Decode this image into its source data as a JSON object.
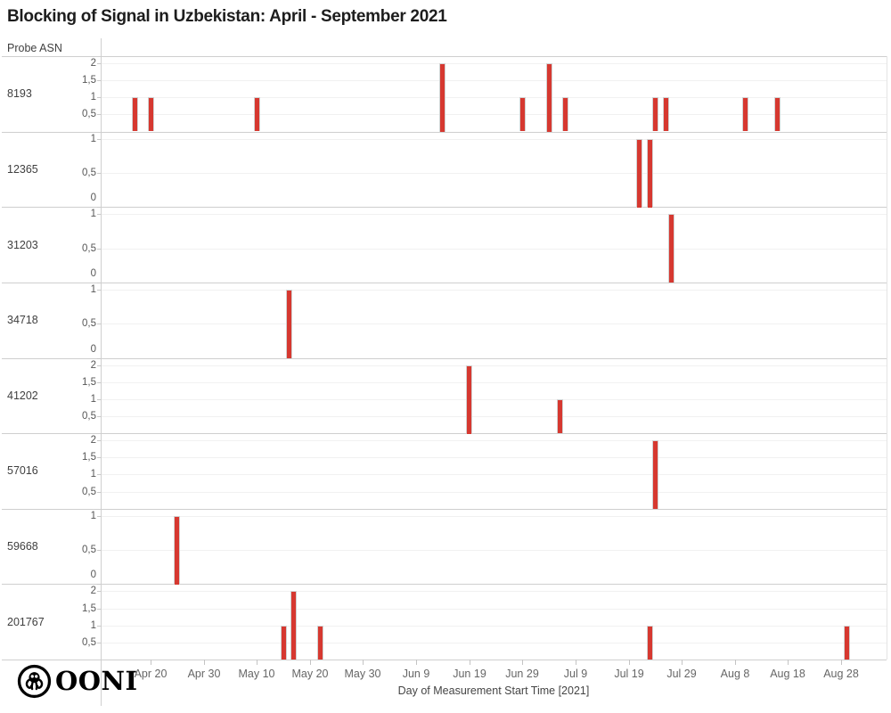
{
  "chart_data": {
    "type": "bar",
    "title": "Blocking of Signal in Uzbekistan: April - September 2021",
    "facet_label": "Probe ASN",
    "xlabel": "Day of Measurement Start Time [2021]",
    "x_domain": [
      "2021-04-11",
      "2021-09-05"
    ],
    "grid": true,
    "decimal_separator": ",",
    "bar_color": "#d63830",
    "x_ticks": [
      {
        "date": "2021-04-20",
        "label": "Apr 20"
      },
      {
        "date": "2021-04-30",
        "label": "Apr 30"
      },
      {
        "date": "2021-05-10",
        "label": "May 10"
      },
      {
        "date": "2021-05-20",
        "label": "May 20"
      },
      {
        "date": "2021-05-30",
        "label": "May 30"
      },
      {
        "date": "2021-06-09",
        "label": "Jun 9"
      },
      {
        "date": "2021-06-19",
        "label": "Jun 19"
      },
      {
        "date": "2021-06-29",
        "label": "Jun 29"
      },
      {
        "date": "2021-07-09",
        "label": "Jul 9"
      },
      {
        "date": "2021-07-19",
        "label": "Jul 19"
      },
      {
        "date": "2021-07-29",
        "label": "Jul 29"
      },
      {
        "date": "2021-08-08",
        "label": "Aug 8"
      },
      {
        "date": "2021-08-18",
        "label": "Aug 18"
      },
      {
        "date": "2021-08-28",
        "label": "Aug 28"
      }
    ],
    "facets": [
      {
        "asn": "8193",
        "y_max": 2,
        "y_ticks": [
          {
            "v": 2,
            "label": "2"
          },
          {
            "v": 1.5,
            "label": "1,5"
          },
          {
            "v": 1,
            "label": "1"
          },
          {
            "v": 0.5,
            "label": "0,5"
          }
        ],
        "bars": [
          {
            "date": "2021-04-17",
            "value": 1
          },
          {
            "date": "2021-04-20",
            "value": 1
          },
          {
            "date": "2021-05-10",
            "value": 1
          },
          {
            "date": "2021-06-14",
            "value": 2
          },
          {
            "date": "2021-06-29",
            "value": 1
          },
          {
            "date": "2021-07-04",
            "value": 2
          },
          {
            "date": "2021-07-07",
            "value": 1
          },
          {
            "date": "2021-07-24",
            "value": 1
          },
          {
            "date": "2021-07-26",
            "value": 1
          },
          {
            "date": "2021-08-10",
            "value": 1
          },
          {
            "date": "2021-08-16",
            "value": 1
          }
        ]
      },
      {
        "asn": "12365",
        "y_max": 1,
        "y_ticks": [
          {
            "v": 1,
            "label": "1"
          },
          {
            "v": 0.5,
            "label": "0,5"
          },
          {
            "v": 0,
            "label": "0"
          }
        ],
        "bars": [
          {
            "date": "2021-07-21",
            "value": 1
          },
          {
            "date": "2021-07-23",
            "value": 1
          }
        ]
      },
      {
        "asn": "31203",
        "y_max": 1,
        "y_ticks": [
          {
            "v": 1,
            "label": "1"
          },
          {
            "v": 0.5,
            "label": "0,5"
          },
          {
            "v": 0,
            "label": "0"
          }
        ],
        "bars": [
          {
            "date": "2021-07-27",
            "value": 1
          }
        ]
      },
      {
        "asn": "34718",
        "y_max": 1,
        "y_ticks": [
          {
            "v": 1,
            "label": "1"
          },
          {
            "v": 0.5,
            "label": "0,5"
          },
          {
            "v": 0,
            "label": "0"
          }
        ],
        "bars": [
          {
            "date": "2021-05-16",
            "value": 1
          }
        ]
      },
      {
        "asn": "41202",
        "y_max": 2,
        "y_ticks": [
          {
            "v": 2,
            "label": "2"
          },
          {
            "v": 1.5,
            "label": "1,5"
          },
          {
            "v": 1,
            "label": "1"
          },
          {
            "v": 0.5,
            "label": "0,5"
          }
        ],
        "bars": [
          {
            "date": "2021-06-19",
            "value": 2
          },
          {
            "date": "2021-07-06",
            "value": 1
          }
        ]
      },
      {
        "asn": "57016",
        "y_max": 2,
        "y_ticks": [
          {
            "v": 2,
            "label": "2"
          },
          {
            "v": 1.5,
            "label": "1,5"
          },
          {
            "v": 1,
            "label": "1"
          },
          {
            "v": 0.5,
            "label": "0,5"
          }
        ],
        "bars": [
          {
            "date": "2021-07-24",
            "value": 2
          }
        ]
      },
      {
        "asn": "59668",
        "y_max": 1,
        "y_ticks": [
          {
            "v": 1,
            "label": "1"
          },
          {
            "v": 0.5,
            "label": "0,5"
          },
          {
            "v": 0,
            "label": "0"
          }
        ],
        "bars": [
          {
            "date": "2021-04-25",
            "value": 1
          }
        ]
      },
      {
        "asn": "201767",
        "y_max": 2,
        "y_ticks": [
          {
            "v": 2,
            "label": "2"
          },
          {
            "v": 1.5,
            "label": "1,5"
          },
          {
            "v": 1,
            "label": "1"
          },
          {
            "v": 0.5,
            "label": "0,5"
          }
        ],
        "bars": [
          {
            "date": "2021-05-15",
            "value": 1
          },
          {
            "date": "2021-05-17",
            "value": 2
          },
          {
            "date": "2021-05-22",
            "value": 1
          },
          {
            "date": "2021-07-23",
            "value": 1
          },
          {
            "date": "2021-08-29",
            "value": 1
          }
        ]
      }
    ]
  },
  "footer": {
    "brand": "OONI"
  }
}
